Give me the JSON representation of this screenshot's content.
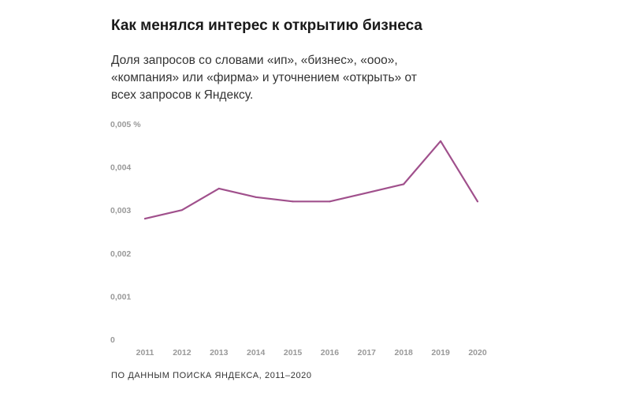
{
  "chart_data": {
    "type": "line",
    "title": "Как менялся интерес к открытию бизнеса",
    "subtitle": "Доля запросов со словами «ип», «бизнес», «ооо», «компания» или «фирма» и уточнением «открыть» от всех запросов к Яндексу.",
    "source": "ПО ДАННЫМ ПОИСКА ЯНДЕКСА, 2011–2020",
    "xlabel": "",
    "ylabel": "",
    "categories": [
      "2011",
      "2012",
      "2013",
      "2014",
      "2015",
      "2016",
      "2017",
      "2018",
      "2019",
      "2020"
    ],
    "series": [
      {
        "name": "Доля запросов",
        "values": [
          0.0028,
          0.003,
          0.0035,
          0.0033,
          0.0032,
          0.0032,
          0.0034,
          0.0036,
          0.0046,
          0.0032
        ],
        "color": "#a0508c"
      }
    ],
    "ylim": [
      0,
      0.005
    ],
    "yticks": [
      {
        "value": 0,
        "label": "0"
      },
      {
        "value": 0.001,
        "label": "0,001"
      },
      {
        "value": 0.002,
        "label": "0,002"
      },
      {
        "value": 0.003,
        "label": "0,003"
      },
      {
        "value": 0.004,
        "label": "0,004"
      },
      {
        "value": 0.005,
        "label": "0,005 %"
      }
    ],
    "grid": false,
    "legend": "none"
  }
}
